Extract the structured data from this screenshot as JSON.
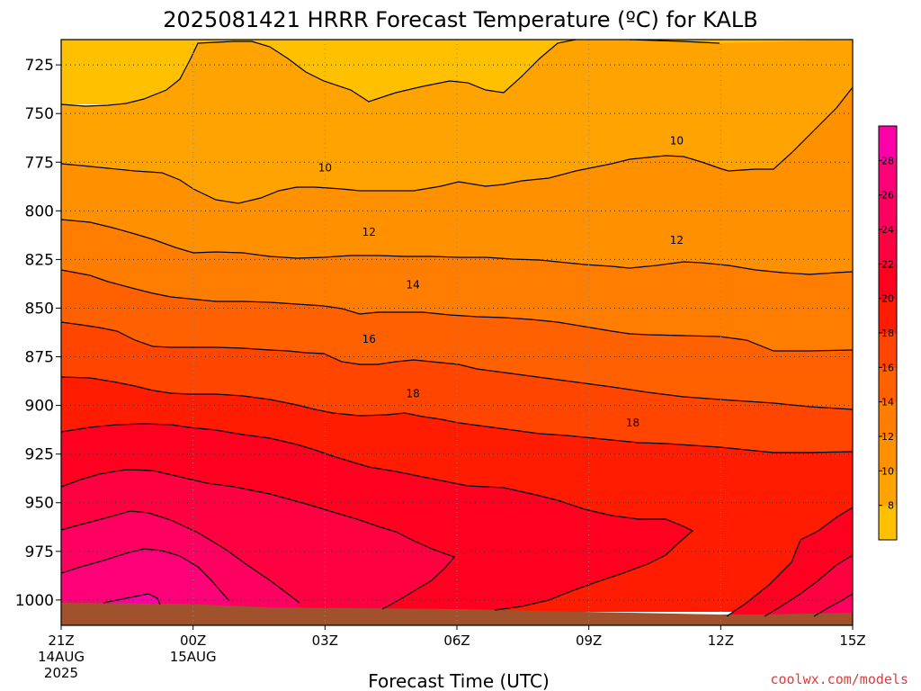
{
  "chart_data": {
    "type": "contour",
    "title": "2025081421 HRRR Forecast Temperature (ºC) for KALB",
    "xlabel": "Forecast Time (UTC)",
    "ylabel": "",
    "credit": "coolwx.com/models",
    "x_ticks": [
      {
        "hour": 0,
        "lines": [
          "21Z",
          "14AUG",
          "2025"
        ]
      },
      {
        "hour": 3,
        "lines": [
          "00Z",
          "15AUG"
        ]
      },
      {
        "hour": 6,
        "lines": [
          "03Z"
        ]
      },
      {
        "hour": 9,
        "lines": [
          "06Z"
        ]
      },
      {
        "hour": 12,
        "lines": [
          "09Z"
        ]
      },
      {
        "hour": 15,
        "lines": [
          "12Z"
        ]
      },
      {
        "hour": 18,
        "lines": [
          "15Z"
        ]
      }
    ],
    "xlim_hours": [
      0,
      18
    ],
    "y_ticks": [
      725,
      750,
      775,
      800,
      825,
      850,
      875,
      900,
      925,
      950,
      975,
      1000
    ],
    "ylim_hPa": [
      1013,
      712
    ],
    "grid": true,
    "colorbar": {
      "levels": [
        6,
        8,
        10,
        12,
        14,
        16,
        18,
        20,
        22,
        24,
        26,
        28,
        30
      ],
      "tick_labels": [
        8,
        10,
        12,
        14,
        16,
        18,
        20,
        22,
        24,
        26,
        28
      ],
      "colors": [
        "#ffc000",
        "#ffa300",
        "#ff9000",
        "#ff7d00",
        "#ff6100",
        "#ff4500",
        "#ff1c00",
        "#ff0020",
        "#ff0040",
        "#ff0060",
        "#ff0078",
        "#ff00a8"
      ]
    },
    "contour_labels": [
      {
        "value": 10,
        "hour": 6.0,
        "hPa": 778
      },
      {
        "value": 10,
        "hour": 14.0,
        "hPa": 764
      },
      {
        "value": 12,
        "hour": 7.0,
        "hPa": 811
      },
      {
        "value": 12,
        "hour": 14.0,
        "hPa": 815
      },
      {
        "value": 14,
        "hour": 8.0,
        "hPa": 838
      },
      {
        "value": 16,
        "hour": 7.0,
        "hPa": 866
      },
      {
        "value": 18,
        "hour": 8.0,
        "hPa": 894
      },
      {
        "value": 18,
        "hour": 13.0,
        "hPa": 909
      }
    ],
    "surface_color": "#a0522d"
  }
}
